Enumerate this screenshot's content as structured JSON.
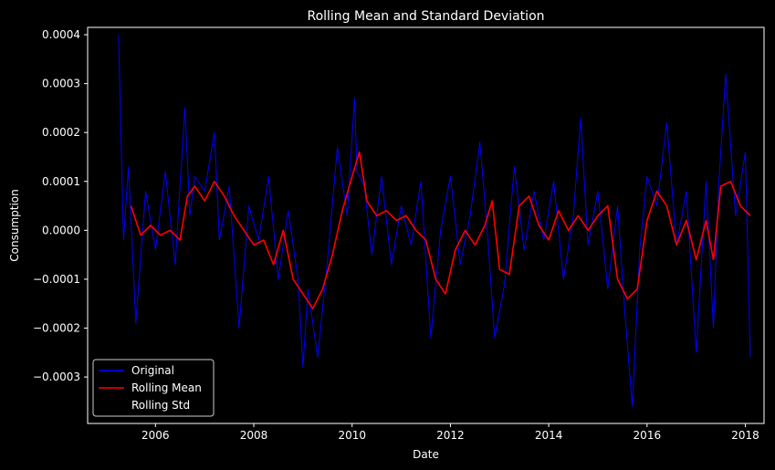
{
  "chart_data": {
    "type": "line",
    "title": "Rolling Mean and Standard Deviation",
    "xlabel": "Date",
    "ylabel": "Consumption",
    "xlim": [
      2004.62,
      2018.38
    ],
    "ylim": [
      -0.000395,
      0.000415
    ],
    "x_ticks": [
      2006,
      2008,
      2010,
      2012,
      2014,
      2016,
      2018
    ],
    "x_tick_labels": [
      "2006",
      "2008",
      "2010",
      "2012",
      "2014",
      "2016",
      "2018"
    ],
    "y_ticks": [
      0.0004,
      0.0003,
      0.0002,
      0.0001,
      0.0,
      -0.0001,
      -0.0002,
      -0.0003
    ],
    "y_tick_labels": [
      "0.0004",
      "0.0003",
      "0.0002",
      "0.0001",
      "0.0000",
      "−0.0001",
      "−0.0002",
      "−0.0003"
    ],
    "grid": false,
    "legend_position": "lower-left",
    "background": "#000000",
    "axis_color": "#ffffff",
    "series": [
      {
        "name": "Original",
        "color": "#0000ff",
        "x": [
          2005.25,
          2005.35,
          2005.45,
          2005.6,
          2005.8,
          2006.0,
          2006.2,
          2006.4,
          2006.5,
          2006.6,
          2006.7,
          2006.8,
          2007.0,
          2007.2,
          2007.3,
          2007.5,
          2007.7,
          2007.9,
          2008.1,
          2008.3,
          2008.5,
          2008.7,
          2008.9,
          2009.0,
          2009.1,
          2009.3,
          2009.5,
          2009.7,
          2009.9,
          2010.05,
          2010.1,
          2010.25,
          2010.4,
          2010.6,
          2010.8,
          2011.0,
          2011.2,
          2011.4,
          2011.6,
          2011.8,
          2012.0,
          2012.2,
          2012.4,
          2012.6,
          2012.75,
          2012.9,
          2013.1,
          2013.3,
          2013.5,
          2013.7,
          2013.9,
          2014.1,
          2014.3,
          2014.5,
          2014.65,
          2014.8,
          2015.0,
          2015.2,
          2015.4,
          2015.55,
          2015.7,
          2015.85,
          2016.0,
          2016.2,
          2016.4,
          2016.6,
          2016.8,
          2017.0,
          2017.2,
          2017.35,
          2017.45,
          2017.6,
          2017.8,
          2018.0,
          2018.1
        ],
        "values": [
          0.0004,
          -2e-05,
          0.00013,
          -0.00019,
          8e-05,
          -4e-05,
          0.00012,
          -7e-05,
          9e-05,
          0.00025,
          3e-05,
          0.00011,
          8e-05,
          0.0002,
          -2e-05,
          9e-05,
          -0.0002,
          5e-05,
          -2e-05,
          0.00011,
          -0.0001,
          4e-05,
          -0.0001,
          -0.00028,
          -0.00012,
          -0.00026,
          -6e-05,
          0.00017,
          3e-05,
          0.00027,
          0.00012,
          9e-05,
          -5e-05,
          0.00011,
          -7e-05,
          5e-05,
          -3e-05,
          0.0001,
          -0.00022,
          0.0,
          0.00011,
          -7e-05,
          3e-05,
          0.00018,
          0.0,
          -0.00022,
          -0.00011,
          0.00013,
          -4e-05,
          8e-05,
          -2e-05,
          0.0001,
          -0.0001,
          3e-05,
          0.00023,
          -3e-05,
          8e-05,
          -0.00012,
          5e-05,
          -0.00017,
          -0.00036,
          -4e-05,
          0.00011,
          5e-05,
          0.00022,
          -3e-05,
          8e-05,
          -0.00025,
          0.0001,
          -0.0002,
          8e-05,
          0.00032,
          3e-05,
          0.00016,
          -0.00026
        ]
      },
      {
        "name": "Rolling Mean",
        "color": "#ff0000",
        "x": [
          2005.5,
          2005.7,
          2005.9,
          2006.1,
          2006.3,
          2006.5,
          2006.65,
          2006.8,
          2007.0,
          2007.2,
          2007.4,
          2007.6,
          2007.8,
          2008.0,
          2008.2,
          2008.4,
          2008.6,
          2008.8,
          2009.0,
          2009.2,
          2009.4,
          2009.6,
          2009.8,
          2010.0,
          2010.15,
          2010.3,
          2010.5,
          2010.7,
          2010.9,
          2011.1,
          2011.3,
          2011.5,
          2011.7,
          2011.9,
          2012.1,
          2012.3,
          2012.5,
          2012.7,
          2012.85,
          2013.0,
          2013.2,
          2013.4,
          2013.6,
          2013.8,
          2014.0,
          2014.2,
          2014.4,
          2014.6,
          2014.8,
          2015.0,
          2015.2,
          2015.4,
          2015.6,
          2015.8,
          2016.0,
          2016.2,
          2016.4,
          2016.6,
          2016.8,
          2017.0,
          2017.2,
          2017.35,
          2017.5,
          2017.7,
          2017.9,
          2018.1
        ],
        "values": [
          5e-05,
          -1e-05,
          1e-05,
          -1e-05,
          0.0,
          -2e-05,
          7e-05,
          9e-05,
          6e-05,
          0.0001,
          7e-05,
          3e-05,
          0.0,
          -3e-05,
          -2e-05,
          -7e-05,
          0.0,
          -0.0001,
          -0.00013,
          -0.00016,
          -0.00012,
          -5e-05,
          4e-05,
          0.00011,
          0.00016,
          6e-05,
          3e-05,
          4e-05,
          2e-05,
          3e-05,
          0.0,
          -2e-05,
          -0.0001,
          -0.00013,
          -4e-05,
          0.0,
          -3e-05,
          1e-05,
          6e-05,
          -8e-05,
          -9e-05,
          5e-05,
          7e-05,
          1e-05,
          -2e-05,
          4e-05,
          0.0,
          3e-05,
          0.0,
          3e-05,
          5e-05,
          -0.0001,
          -0.00014,
          -0.00012,
          2e-05,
          8e-05,
          5e-05,
          -3e-05,
          2e-05,
          -6e-05,
          2e-05,
          -6e-05,
          9e-05,
          0.0001,
          5e-05,
          3e-05
        ]
      },
      {
        "name": "Rolling Std",
        "color": "#000000",
        "x": [],
        "values": []
      }
    ]
  }
}
